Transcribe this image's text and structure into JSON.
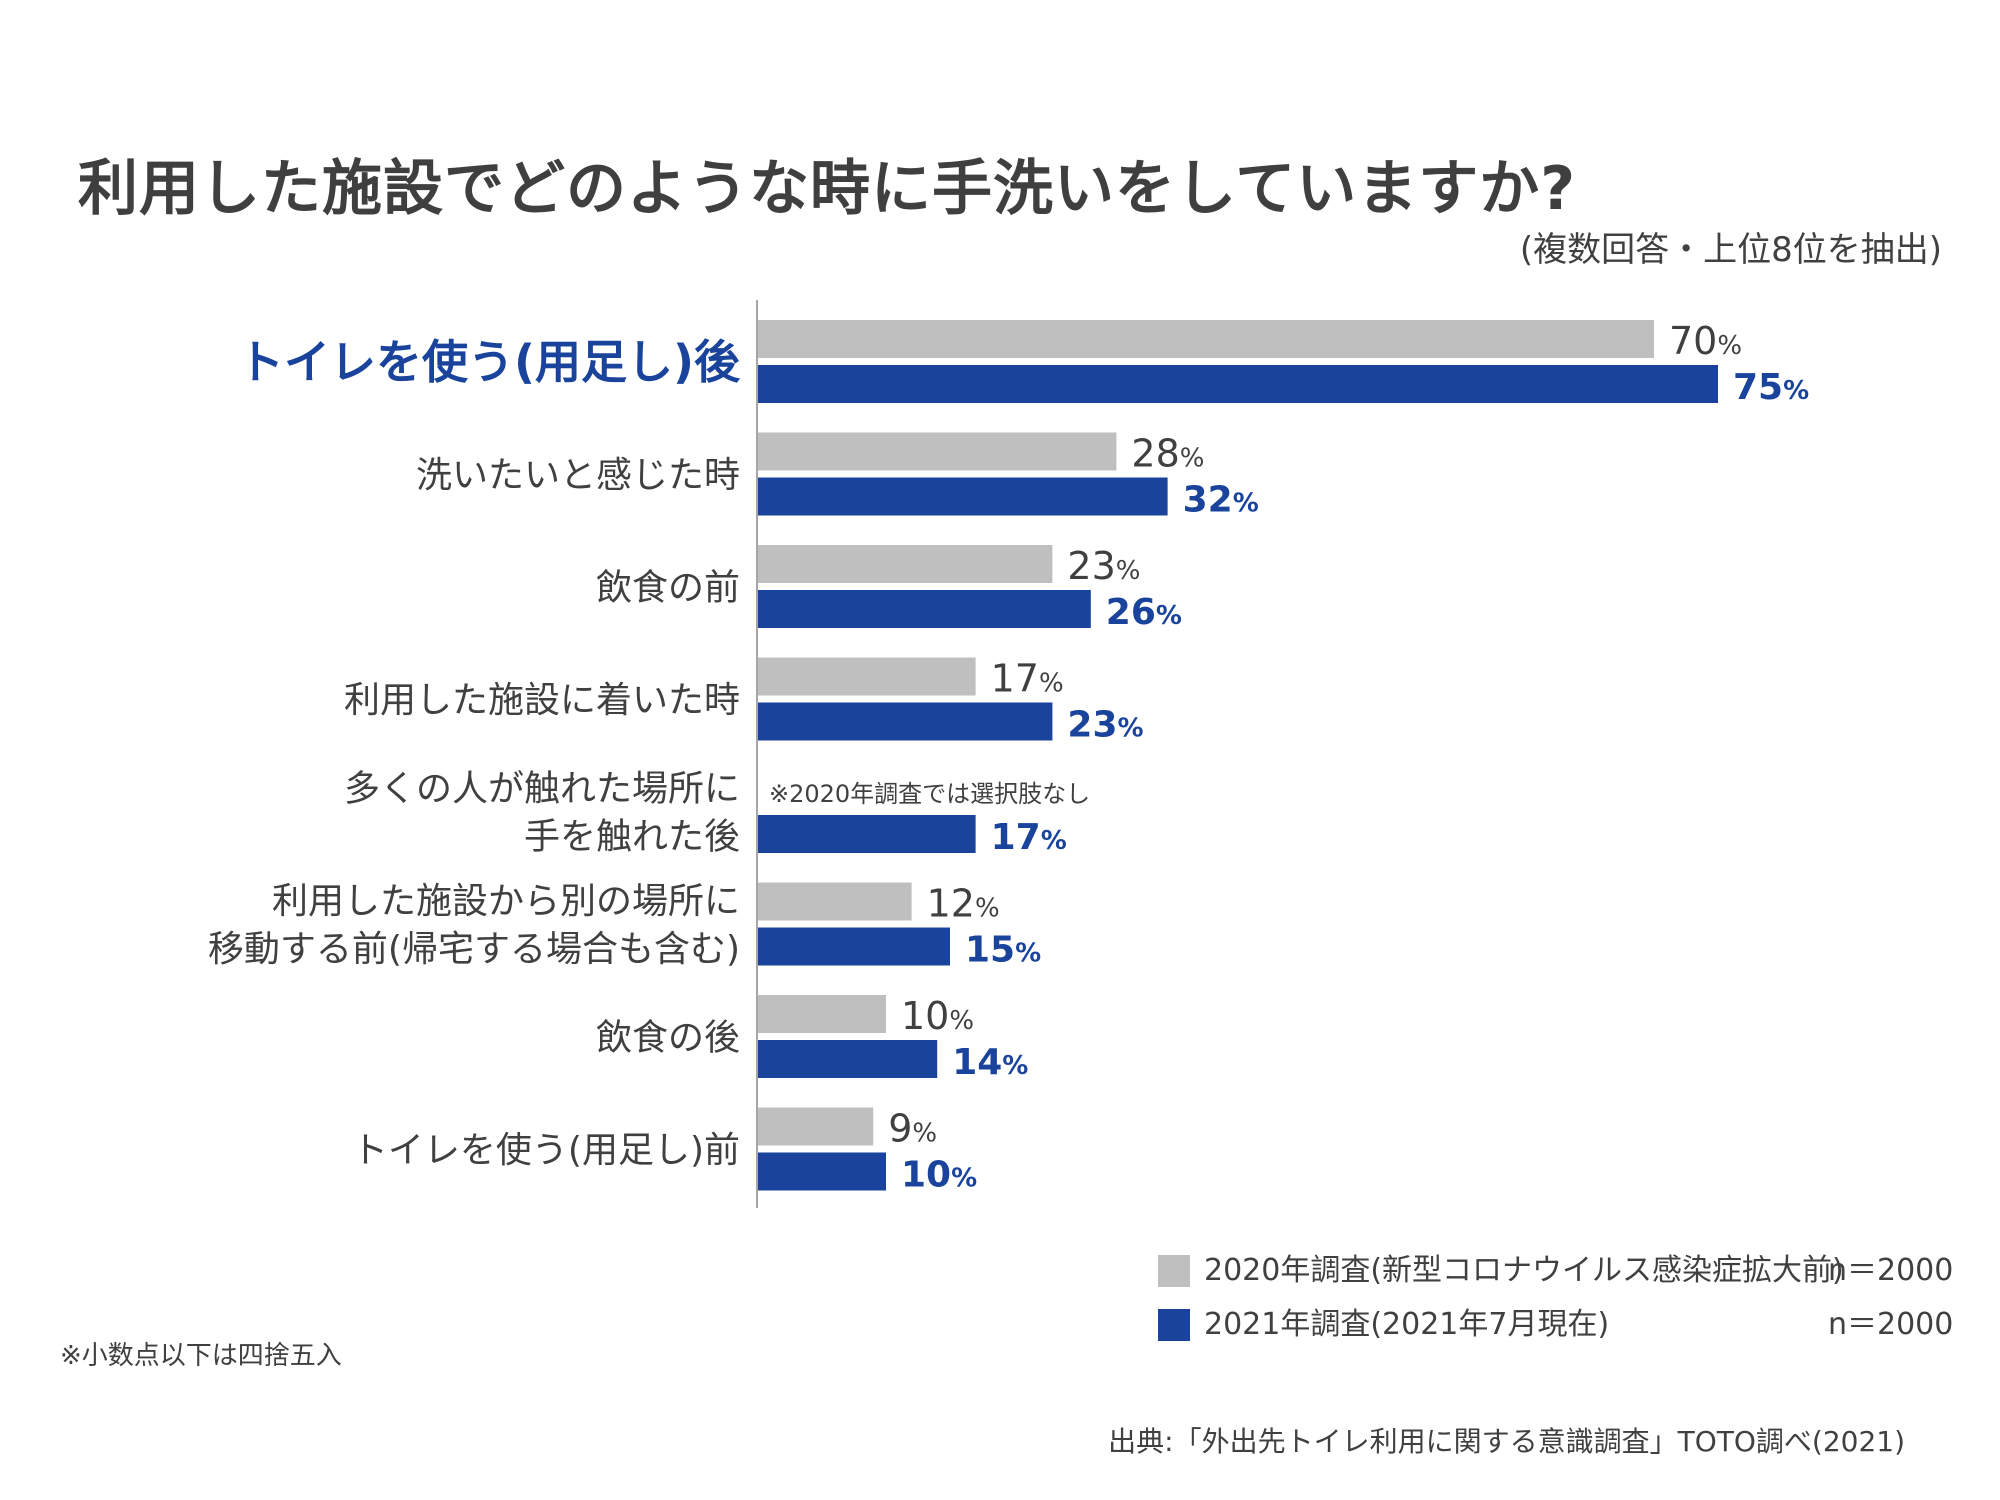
{
  "title": "利用した施設でどのような時に手洗いをしていますか?",
  "subtitle": "(複数回答・上位8位を抽出)",
  "chart_data": {
    "type": "bar",
    "orientation": "horizontal",
    "categories": [
      [
        "トイレを使う(用足し)後"
      ],
      [
        "洗いたいと感じた時"
      ],
      [
        "飲食の前"
      ],
      [
        "利用した施設に着いた時"
      ],
      [
        "多くの人が触れた場所に",
        "手を触れた後"
      ],
      [
        "利用した施設から別の場所に",
        "移動する前(帰宅する場合も含む)"
      ],
      [
        "飲食の後"
      ],
      [
        "トイレを使う(用足し)前"
      ]
    ],
    "highlight_category_index": 0,
    "unit": "%",
    "series": [
      {
        "name": "2020年調査(新型コロナウイルス感染症拡大前)",
        "n": "n＝2000",
        "color": "#bfbfbf",
        "values": [
          70,
          28,
          23,
          17,
          null,
          12,
          10,
          9
        ]
      },
      {
        "name": "2021年調査(2021年7月現在)",
        "n": "n＝2000",
        "color": "#1a439b",
        "values": [
          75,
          32,
          26,
          23,
          17,
          15,
          14,
          10
        ]
      }
    ],
    "annotations": [
      {
        "category_index": 4,
        "text": "※2020年調査では選択肢なし"
      }
    ],
    "xlim": [
      0,
      100
    ],
    "grid": false,
    "legend": "bottom-right"
  },
  "legend": [
    {
      "label": "2020年調査(新型コロナウイルス感染症拡大前)",
      "n": "n＝2000"
    },
    {
      "label": "2021年調査(2021年7月現在)",
      "n": "n＝2000"
    }
  ],
  "footnote": "※小数点以下は四捨五入",
  "source": "出典:「外出先トイレ利用に関する意識調査」TOTO調べ(2021)"
}
